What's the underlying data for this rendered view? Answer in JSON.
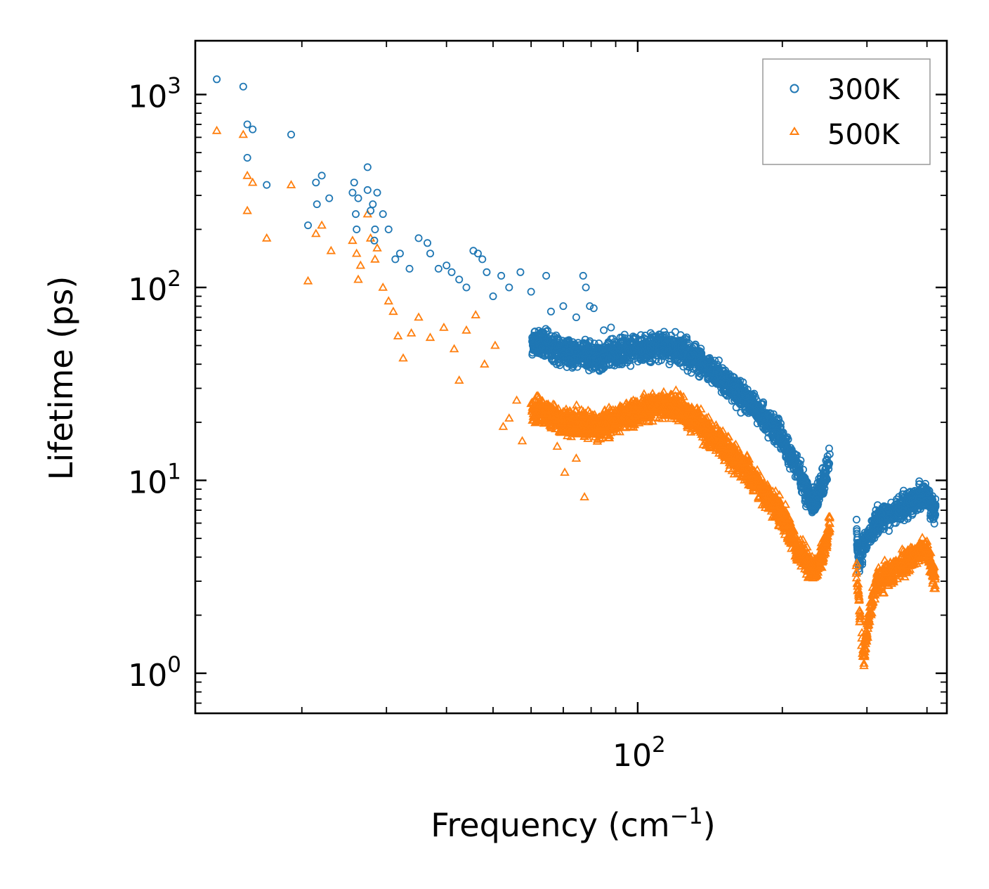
{
  "chart_data": {
    "type": "scatter",
    "xscale": "log",
    "yscale": "log",
    "xlabel": "Frequency (cm",
    "xlabel_sup": "−1",
    "xlabel_suffix": ")",
    "ylabel": "Lifetime (ps)",
    "xlim": [
      12,
      440
    ],
    "ylim": [
      0.62,
      1900
    ],
    "x_ticks": [
      {
        "base": "10",
        "exp": "2",
        "value": 100
      }
    ],
    "y_ticks": [
      {
        "base": "10",
        "exp": "0",
        "value": 1
      },
      {
        "base": "10",
        "exp": "1",
        "value": 10
      },
      {
        "base": "10",
        "exp": "2",
        "value": 100
      },
      {
        "base": "10",
        "exp": "3",
        "value": 1000
      }
    ],
    "legend_position": "top-right",
    "series": [
      {
        "name": "300K",
        "marker": "circle",
        "color": "#1f77b4",
        "points": [
          [
            13.3,
            1200
          ],
          [
            15.1,
            1100
          ],
          [
            15.4,
            700
          ],
          [
            15.8,
            660
          ],
          [
            15.4,
            470
          ],
          [
            16.9,
            340
          ],
          [
            19.0,
            620
          ],
          [
            20.6,
            210
          ],
          [
            21.4,
            350
          ],
          [
            21.5,
            270
          ],
          [
            22.0,
            380
          ],
          [
            22.8,
            290
          ],
          [
            25.5,
            310
          ],
          [
            25.7,
            350
          ],
          [
            25.9,
            240
          ],
          [
            26.2,
            290
          ],
          [
            26.0,
            200
          ],
          [
            27.4,
            420
          ],
          [
            27.4,
            320
          ],
          [
            27.8,
            250
          ],
          [
            28.1,
            270
          ],
          [
            28.4,
            200
          ],
          [
            28.7,
            310
          ],
          [
            28.3,
            175
          ],
          [
            29.5,
            240
          ],
          [
            30.3,
            200
          ],
          [
            31.3,
            140
          ],
          [
            32.0,
            150
          ],
          [
            33.5,
            125
          ],
          [
            35.0,
            180
          ],
          [
            36.5,
            170
          ],
          [
            37.0,
            150
          ],
          [
            38.5,
            125
          ],
          [
            40.0,
            130
          ],
          [
            41.0,
            120
          ],
          [
            42.5,
            110
          ],
          [
            44.0,
            100
          ],
          [
            45.5,
            155
          ],
          [
            46.5,
            150
          ],
          [
            47.5,
            140
          ],
          [
            48.5,
            120
          ],
          [
            50.0,
            90
          ],
          [
            52.0,
            115
          ],
          [
            54.0,
            100
          ],
          [
            57.0,
            120
          ],
          [
            60.0,
            95
          ],
          [
            64.5,
            115
          ],
          [
            66.0,
            75
          ],
          [
            70.0,
            80
          ],
          [
            74.5,
            70
          ],
          [
            77.0,
            115
          ],
          [
            78.0,
            100
          ],
          [
            79.5,
            80
          ],
          [
            81.0,
            78
          ],
          [
            85.0,
            60
          ],
          [
            88.0,
            62
          ],
          [
            92.0,
            55
          ]
        ]
      },
      {
        "name": "500K",
        "marker": "triangle",
        "color": "#ff7f0e",
        "points": [
          [
            13.3,
            650
          ],
          [
            15.1,
            620
          ],
          [
            15.4,
            380
          ],
          [
            15.8,
            350
          ],
          [
            15.4,
            250
          ],
          [
            16.9,
            180
          ],
          [
            19.0,
            340
          ],
          [
            20.6,
            108
          ],
          [
            21.4,
            190
          ],
          [
            22.0,
            210
          ],
          [
            23.0,
            155
          ],
          [
            25.5,
            175
          ],
          [
            26.0,
            150
          ],
          [
            26.2,
            110
          ],
          [
            26.5,
            130
          ],
          [
            27.4,
            240
          ],
          [
            27.8,
            180
          ],
          [
            28.4,
            140
          ],
          [
            28.7,
            160
          ],
          [
            29.5,
            100
          ],
          [
            30.3,
            85
          ],
          [
            31.0,
            75
          ],
          [
            31.7,
            56
          ],
          [
            32.5,
            43
          ],
          [
            33.8,
            58
          ],
          [
            35.0,
            70
          ],
          [
            37.0,
            55
          ],
          [
            39.5,
            62
          ],
          [
            41.5,
            48
          ],
          [
            42.5,
            33
          ],
          [
            44.0,
            60
          ],
          [
            46.0,
            72
          ],
          [
            48.0,
            40
          ],
          [
            50.5,
            50
          ],
          [
            52.5,
            19
          ],
          [
            54.0,
            21
          ],
          [
            56.0,
            26
          ],
          [
            57.5,
            16
          ],
          [
            60.0,
            25
          ],
          [
            62.5,
            22
          ],
          [
            66.0,
            19
          ],
          [
            68.0,
            15
          ],
          [
            70.5,
            11
          ],
          [
            74.5,
            13
          ],
          [
            77.5,
            8.2
          ]
        ]
      }
    ],
    "dense_region_note": "continuous dense cloud of points from ~60 to ~440 cm-1 for both series"
  }
}
